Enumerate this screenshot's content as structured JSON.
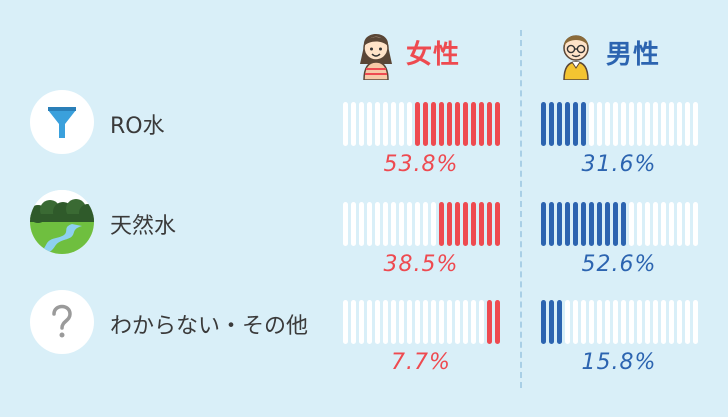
{
  "headers": {
    "female": {
      "label": "女性",
      "icon": "female-avatar-icon",
      "color": "#ee4a50"
    },
    "male": {
      "label": "男性",
      "icon": "male-avatar-icon",
      "color": "#2c64b0"
    }
  },
  "rows": [
    {
      "label": "RO水",
      "icon": "funnel-filter-icon",
      "female_pct": "53.8%",
      "male_pct": "31.6%",
      "female_value": 53.8,
      "male_value": 31.6
    },
    {
      "label": "天然水",
      "icon": "nature-landscape-icon",
      "female_pct": "38.5%",
      "male_pct": "52.6%",
      "female_value": 38.5,
      "male_value": 52.6
    },
    {
      "label": "わからない・その他",
      "icon": "question-mark-icon",
      "female_pct": "7.7%",
      "male_pct": "15.8%",
      "female_value": 7.7,
      "male_value": 15.8
    }
  ]
}
